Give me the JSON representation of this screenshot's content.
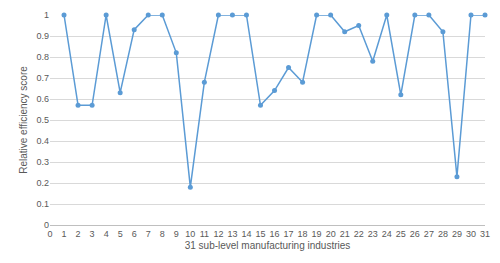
{
  "chart_data": {
    "type": "line",
    "x_label": "31 sub-level manufacturing industries",
    "y_label": "Relative efficiency score",
    "x": [
      1,
      2,
      3,
      4,
      5,
      6,
      7,
      8,
      9,
      10,
      11,
      12,
      13,
      14,
      15,
      16,
      17,
      18,
      19,
      20,
      21,
      22,
      23,
      24,
      25,
      26,
      27,
      28,
      29,
      30,
      31
    ],
    "values": [
      1,
      0.57,
      0.57,
      1,
      0.63,
      0.93,
      1,
      1,
      0.82,
      0.18,
      0.68,
      1,
      1,
      1,
      0.57,
      0.64,
      0.75,
      0.68,
      1,
      1,
      0.92,
      0.95,
      0.78,
      1,
      0.62,
      1,
      1,
      0.92,
      0.23,
      1,
      1
    ],
    "color": "#5b9bd5",
    "marker": "circle",
    "xlim": [
      0,
      31
    ],
    "xticks": [
      0,
      1,
      2,
      3,
      4,
      5,
      6,
      7,
      8,
      9,
      10,
      11,
      12,
      13,
      14,
      15,
      16,
      17,
      18,
      19,
      20,
      21,
      22,
      23,
      24,
      25,
      26,
      27,
      28,
      29,
      30,
      31
    ],
    "ylim": [
      0,
      1
    ],
    "yticks": [
      0,
      0.1,
      0.2,
      0.3,
      0.4,
      0.5,
      0.6,
      0.7,
      0.8,
      0.9,
      1
    ],
    "grid": true
  }
}
